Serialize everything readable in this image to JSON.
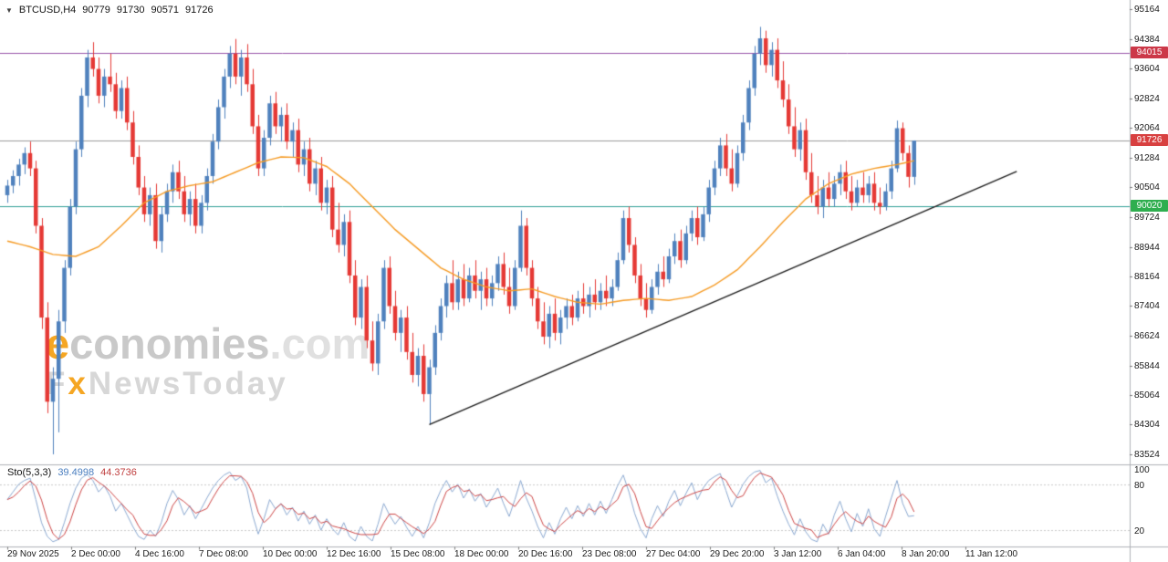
{
  "icons": {
    "chevron_down": "▼"
  },
  "header": {
    "symbol_period": "BTCUSD,H4",
    "open": "90779",
    "high": "91730",
    "low": "90571",
    "close": "91726"
  },
  "watermark": {
    "brand_e": "e",
    "brand_rest": "conomies",
    "brand_tld": ".com",
    "tagline_f": "F",
    "tagline_x": "x",
    "tagline_rest": "NewsToday"
  },
  "indicator": {
    "name": "Sto(5,3,3)",
    "k_value": "39.4998",
    "d_value": "44.3736"
  },
  "price_axis_ticks": [
    "95164",
    "94384",
    "93604",
    "92824",
    "92064",
    "91284",
    "90504",
    "89724",
    "88944",
    "88164",
    "87404",
    "86624",
    "85844",
    "85064",
    "84304",
    "83524"
  ],
  "time_axis_labels": [
    "29 Nov 2025",
    "2 Dec 00:00",
    "4 Dec 16:00",
    "7 Dec 08:00",
    "10 Dec 00:00",
    "12 Dec 16:00",
    "15 Dec 08:00",
    "18 Dec 00:00",
    "20 Dec 16:00",
    "23 Dec 08:00",
    "27 Dec 04:00",
    "29 Dec 20:00",
    "3 Jan 12:00",
    "6 Jan 04:00",
    "8 Jan 20:00",
    "11 Jan 12:00"
  ],
  "stoch_axis_labels": [
    "100",
    "80",
    "20"
  ],
  "chart_data": {
    "type": "candlestick",
    "symbol": "BTCUSD",
    "timeframe": "H4",
    "title": "BTCUSD,H4 90779 91730 90571 91726",
    "price_min": 83524,
    "price_max": 95164,
    "current_price": 91726,
    "colors": {
      "up": "#4f81bd",
      "down": "#e53935",
      "ma": "#f59a23",
      "trendline": "#1a1a1a",
      "separator": "#aeb1b6",
      "stoch_k": "#8aa8d0",
      "stoch_d": "#cc4444",
      "stoch_level": "#c9c9c9",
      "current_line": "#9a9a9a"
    },
    "hlines": [
      {
        "value": 94015,
        "line_color": "#9955aa",
        "label": "94015",
        "label_bg": "#cc3848"
      },
      {
        "value": 91726,
        "line_color": "#9a9a9a",
        "label": "91726",
        "label_bg": "#d84040"
      },
      {
        "value": 90020,
        "line_color": "#2e9e96",
        "label": "90020",
        "label_bg": "#2fae4f"
      }
    ],
    "trendline": {
      "from_index": 74,
      "from_price": 84300,
      "to_index": 177,
      "to_price": 90920
    },
    "ma_anchors": [
      [
        0,
        89100
      ],
      [
        4,
        88950
      ],
      [
        8,
        88750
      ],
      [
        12,
        88700
      ],
      [
        16,
        88950
      ],
      [
        20,
        89500
      ],
      [
        24,
        90100
      ],
      [
        28,
        90400
      ],
      [
        32,
        90550
      ],
      [
        36,
        90650
      ],
      [
        40,
        90900
      ],
      [
        44,
        91150
      ],
      [
        48,
        91300
      ],
      [
        52,
        91280
      ],
      [
        56,
        91050
      ],
      [
        60,
        90600
      ],
      [
        64,
        90000
      ],
      [
        68,
        89400
      ],
      [
        72,
        88900
      ],
      [
        76,
        88400
      ],
      [
        80,
        88100
      ],
      [
        84,
        87900
      ],
      [
        88,
        87800
      ],
      [
        92,
        87850
      ],
      [
        96,
        87650
      ],
      [
        100,
        87500
      ],
      [
        104,
        87450
      ],
      [
        108,
        87550
      ],
      [
        112,
        87600
      ],
      [
        116,
        87550
      ],
      [
        120,
        87650
      ],
      [
        124,
        87950
      ],
      [
        128,
        88350
      ],
      [
        132,
        88950
      ],
      [
        136,
        89600
      ],
      [
        140,
        90200
      ],
      [
        144,
        90600
      ],
      [
        148,
        90850
      ],
      [
        152,
        91000
      ],
      [
        156,
        91100
      ],
      [
        159,
        91200
      ]
    ],
    "candles": [
      [
        90300,
        90700,
        90100,
        90550
      ],
      [
        90550,
        90950,
        90350,
        90800
      ],
      [
        90800,
        91250,
        90550,
        91100
      ],
      [
        91100,
        91550,
        90850,
        91400
      ],
      [
        91400,
        91700,
        90800,
        91000
      ],
      [
        91000,
        91200,
        89300,
        89500
      ],
      [
        89500,
        89700,
        86800,
        87100
      ],
      [
        87100,
        87500,
        84600,
        84900
      ],
      [
        84900,
        85800,
        83524,
        85500
      ],
      [
        85500,
        87300,
        84100,
        87000
      ],
      [
        87000,
        88600,
        86700,
        88400
      ],
      [
        88400,
        90200,
        88200,
        90000
      ],
      [
        90000,
        91700,
        89800,
        91500
      ],
      [
        91500,
        93100,
        91300,
        92900
      ],
      [
        92900,
        94100,
        92600,
        93900
      ],
      [
        93900,
        94300,
        93400,
        93600
      ],
      [
        93600,
        93900,
        92700,
        92900
      ],
      [
        92900,
        93600,
        92600,
        93400
      ],
      [
        93400,
        94000,
        93000,
        93200
      ],
      [
        93200,
        93500,
        92300,
        92500
      ],
      [
        92500,
        93300,
        92300,
        93100
      ],
      [
        93100,
        93400,
        92000,
        92200
      ],
      [
        92200,
        92500,
        91100,
        91300
      ],
      [
        91300,
        91600,
        90300,
        90500
      ],
      [
        90500,
        90800,
        89600,
        89800
      ],
      [
        89800,
        90500,
        89500,
        90300
      ],
      [
        90300,
        90600,
        88900,
        89100
      ],
      [
        89100,
        90000,
        88800,
        89800
      ],
      [
        89800,
        90600,
        89600,
        90400
      ],
      [
        90400,
        91100,
        90100,
        90900
      ],
      [
        90900,
        91200,
        90200,
        90400
      ],
      [
        90400,
        90800,
        89600,
        89800
      ],
      [
        89800,
        90400,
        89500,
        90200
      ],
      [
        90200,
        90600,
        89300,
        89500
      ],
      [
        89500,
        90300,
        89300,
        90100
      ],
      [
        90100,
        91000,
        89900,
        90800
      ],
      [
        90800,
        91900,
        90600,
        91700
      ],
      [
        91700,
        92800,
        91500,
        92600
      ],
      [
        92600,
        93600,
        92300,
        93400
      ],
      [
        93400,
        94200,
        93100,
        94000
      ],
      [
        94000,
        94384,
        93200,
        93400
      ],
      [
        93400,
        94100,
        92900,
        93900
      ],
      [
        93900,
        94250,
        93000,
        93200
      ],
      [
        93200,
        93600,
        91900,
        92100
      ],
      [
        92100,
        92400,
        90800,
        91000
      ],
      [
        91000,
        92000,
        90800,
        91800
      ],
      [
        91800,
        92900,
        91600,
        92700
      ],
      [
        92700,
        93000,
        91900,
        92100
      ],
      [
        92100,
        92600,
        91700,
        92400
      ],
      [
        92400,
        92700,
        91500,
        91700
      ],
      [
        91700,
        92200,
        91300,
        92000
      ],
      [
        92000,
        92300,
        90900,
        91100
      ],
      [
        91100,
        91700,
        90800,
        91500
      ],
      [
        91500,
        91800,
        90400,
        90600
      ],
      [
        90600,
        91200,
        90300,
        91000
      ],
      [
        91000,
        91300,
        89900,
        90100
      ],
      [
        90100,
        90700,
        89800,
        90500
      ],
      [
        90500,
        90800,
        89200,
        89400
      ],
      [
        89400,
        90100,
        88800,
        89000
      ],
      [
        89000,
        89800,
        88700,
        89600
      ],
      [
        89600,
        89900,
        88000,
        88200
      ],
      [
        88200,
        88600,
        86900,
        87100
      ],
      [
        87100,
        88100,
        86800,
        87900
      ],
      [
        87900,
        88200,
        86300,
        86500
      ],
      [
        86500,
        87000,
        85700,
        85900
      ],
      [
        85900,
        87200,
        85600,
        87000
      ],
      [
        87000,
        88600,
        86800,
        88400
      ],
      [
        88400,
        88700,
        87200,
        87400
      ],
      [
        87400,
        87800,
        86500,
        86700
      ],
      [
        86700,
        87300,
        86200,
        87100
      ],
      [
        87100,
        87400,
        86000,
        86200
      ],
      [
        86200,
        86700,
        85400,
        85600
      ],
      [
        85600,
        86300,
        85300,
        86100
      ],
      [
        86100,
        86400,
        84900,
        85100
      ],
      [
        85100,
        86000,
        84300,
        85800
      ],
      [
        85800,
        86900,
        85600,
        86700
      ],
      [
        86700,
        87600,
        86500,
        87400
      ],
      [
        87400,
        88200,
        87100,
        88000
      ],
      [
        88000,
        88600,
        87300,
        87500
      ],
      [
        87500,
        88300,
        87300,
        88100
      ],
      [
        88100,
        88500,
        87400,
        87600
      ],
      [
        87600,
        88400,
        87500,
        88200
      ],
      [
        88200,
        88600,
        87600,
        87800
      ],
      [
        87800,
        88300,
        87300,
        88100
      ],
      [
        88100,
        88400,
        87400,
        87600
      ],
      [
        87600,
        88200,
        87400,
        88000
      ],
      [
        88000,
        88700,
        87800,
        88500
      ],
      [
        88500,
        88800,
        87700,
        87900
      ],
      [
        87900,
        88400,
        87200,
        87400
      ],
      [
        87400,
        88600,
        87300,
        88400
      ],
      [
        88400,
        89900,
        88300,
        89500
      ],
      [
        89500,
        89700,
        88200,
        88400
      ],
      [
        88400,
        88600,
        87400,
        87600
      ],
      [
        87600,
        87900,
        86800,
        87000
      ],
      [
        87000,
        87500,
        86400,
        86600
      ],
      [
        86600,
        87400,
        86300,
        87200
      ],
      [
        87200,
        87600,
        86500,
        86700
      ],
      [
        86700,
        87300,
        86400,
        87100
      ],
      [
        87100,
        87600,
        86800,
        87400
      ],
      [
        87400,
        87700,
        86900,
        87100
      ],
      [
        87100,
        87800,
        87000,
        87600
      ],
      [
        87600,
        88000,
        87200,
        87400
      ],
      [
        87400,
        87900,
        87100,
        87700
      ],
      [
        87700,
        88100,
        87300,
        87500
      ],
      [
        87500,
        88000,
        87300,
        87800
      ],
      [
        87800,
        88200,
        87400,
        87600
      ],
      [
        87600,
        88100,
        87400,
        87900
      ],
      [
        87900,
        88800,
        87800,
        88600
      ],
      [
        88600,
        89900,
        88500,
        89700
      ],
      [
        89700,
        90000,
        88800,
        89000
      ],
      [
        89000,
        89200,
        88000,
        88200
      ],
      [
        88200,
        88500,
        87400,
        87600
      ],
      [
        87600,
        88000,
        87100,
        87300
      ],
      [
        87300,
        88100,
        87200,
        87900
      ],
      [
        87900,
        88500,
        87700,
        88300
      ],
      [
        88300,
        88700,
        87900,
        88100
      ],
      [
        88100,
        88900,
        88000,
        88700
      ],
      [
        88700,
        89300,
        88500,
        89100
      ],
      [
        89100,
        89400,
        88400,
        88600
      ],
      [
        88600,
        89500,
        88500,
        89300
      ],
      [
        89300,
        89900,
        89100,
        89700
      ],
      [
        89700,
        90000,
        89000,
        89200
      ],
      [
        89200,
        90000,
        89100,
        89800
      ],
      [
        89800,
        90700,
        89600,
        90500
      ],
      [
        90500,
        91200,
        90300,
        91000
      ],
      [
        91000,
        91800,
        90800,
        91600
      ],
      [
        91600,
        91900,
        90800,
        91000
      ],
      [
        91000,
        91500,
        90400,
        90600
      ],
      [
        90600,
        91600,
        90500,
        91400
      ],
      [
        91400,
        92400,
        91200,
        92200
      ],
      [
        92200,
        93300,
        92000,
        93100
      ],
      [
        93100,
        94200,
        92900,
        94000
      ],
      [
        94000,
        94700,
        93700,
        94400
      ],
      [
        94400,
        94600,
        93500,
        93700
      ],
      [
        93700,
        94300,
        93400,
        94100
      ],
      [
        94100,
        94400,
        93100,
        93300
      ],
      [
        93300,
        93800,
        92600,
        92800
      ],
      [
        92800,
        93200,
        91900,
        92100
      ],
      [
        92100,
        92600,
        91300,
        91500
      ],
      [
        91500,
        92200,
        91200,
        92000
      ],
      [
        92000,
        92300,
        90700,
        90900
      ],
      [
        90900,
        91400,
        90100,
        90300
      ],
      [
        90300,
        90800,
        89800,
        90000
      ],
      [
        90000,
        90700,
        89700,
        90500
      ],
      [
        90500,
        90900,
        90000,
        90200
      ],
      [
        90200,
        90800,
        90000,
        90600
      ],
      [
        90600,
        91100,
        90300,
        90900
      ],
      [
        90900,
        91200,
        90200,
        90400
      ],
      [
        90400,
        90800,
        89900,
        90100
      ],
      [
        90100,
        90700,
        90000,
        90500
      ],
      [
        90500,
        90900,
        90100,
        90300
      ],
      [
        90300,
        90800,
        90100,
        90600
      ],
      [
        90600,
        90900,
        89900,
        90100
      ],
      [
        90100,
        90500,
        89800,
        90000
      ],
      [
        90000,
        90600,
        89900,
        90400
      ],
      [
        90400,
        91200,
        90200,
        91000
      ],
      [
        91000,
        92250,
        90900,
        92050
      ],
      [
        92050,
        92200,
        91200,
        91400
      ],
      [
        91400,
        91600,
        90500,
        90779
      ],
      [
        90779,
        91730,
        90571,
        91726
      ]
    ],
    "stochastic": {
      "name": "Sto(5,3,3)",
      "k_last": 39.4998,
      "d_last": 44.3736,
      "levels": [
        80,
        20
      ],
      "k": [
        60,
        70,
        80,
        85,
        88,
        60,
        30,
        12,
        5,
        8,
        30,
        55,
        75,
        88,
        93,
        85,
        70,
        78,
        65,
        45,
        55,
        40,
        25,
        12,
        8,
        20,
        12,
        30,
        55,
        72,
        60,
        40,
        52,
        35,
        48,
        62,
        75,
        85,
        92,
        96,
        85,
        90,
        75,
        40,
        15,
        35,
        60,
        48,
        55,
        40,
        50,
        32,
        45,
        28,
        40,
        20,
        35,
        22,
        14,
        30,
        12,
        6,
        25,
        12,
        6,
        28,
        55,
        40,
        28,
        38,
        24,
        12,
        25,
        10,
        30,
        55,
        72,
        85,
        70,
        80,
        62,
        74,
        58,
        68,
        50,
        62,
        75,
        55,
        38,
        60,
        85,
        62,
        45,
        25,
        10,
        30,
        15,
        35,
        50,
        35,
        52,
        38,
        55,
        40,
        58,
        42,
        60,
        78,
        92,
        70,
        42,
        22,
        10,
        35,
        52,
        38,
        58,
        72,
        52,
        68,
        82,
        60,
        75,
        85,
        90,
        94,
        72,
        50,
        65,
        80,
        90,
        96,
        98,
        82,
        88,
        65,
        45,
        28,
        14,
        35,
        18,
        8,
        5,
        28,
        15,
        40,
        58,
        35,
        18,
        42,
        25,
        48,
        22,
        12,
        38,
        62,
        85,
        55,
        38,
        39
      ]
    }
  }
}
